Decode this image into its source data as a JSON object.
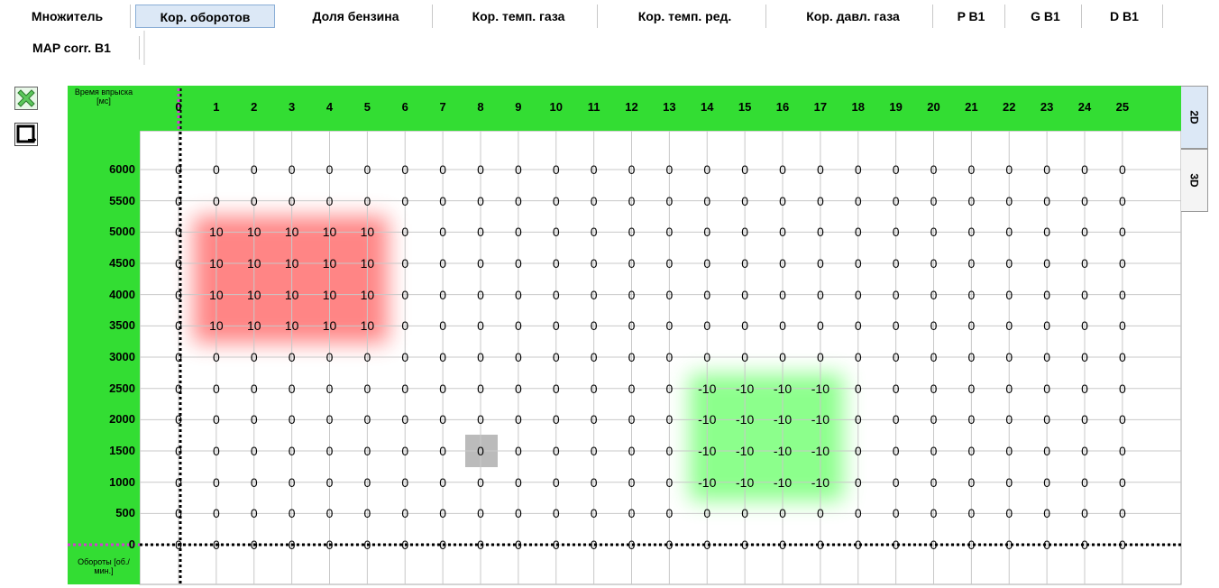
{
  "tabs": [
    "Множитель",
    "Кор. оборотов",
    "Доля бензина",
    "Кор. темп. газа",
    "Кор. темп. ред.",
    "Кор. давл. газа",
    "P B1",
    "G B1",
    "D B1",
    "MAP corr. B1"
  ],
  "active_tab": 1,
  "table": {
    "corner_label": "Время впрыска [мс]",
    "axis_label": "Обороты [об./мин.]",
    "columns": [
      0,
      1,
      2,
      3,
      4,
      5,
      6,
      7,
      8,
      9,
      10,
      11,
      12,
      13,
      14,
      15,
      16,
      17,
      18,
      19,
      20,
      21,
      22,
      23,
      24,
      25
    ],
    "rows": [
      {
        "label": 6000,
        "values": [
          0,
          0,
          0,
          0,
          0,
          0,
          0,
          0,
          0,
          0,
          0,
          0,
          0,
          0,
          0,
          0,
          0,
          0,
          0,
          0,
          0,
          0,
          0,
          0,
          0,
          0
        ]
      },
      {
        "label": 5500,
        "values": [
          0,
          0,
          0,
          0,
          0,
          0,
          0,
          0,
          0,
          0,
          0,
          0,
          0,
          0,
          0,
          0,
          0,
          0,
          0,
          0,
          0,
          0,
          0,
          0,
          0,
          0
        ]
      },
      {
        "label": 5000,
        "values": [
          0,
          10,
          10,
          10,
          10,
          10,
          0,
          0,
          0,
          0,
          0,
          0,
          0,
          0,
          0,
          0,
          0,
          0,
          0,
          0,
          0,
          0,
          0,
          0,
          0,
          0
        ]
      },
      {
        "label": 4500,
        "values": [
          0,
          10,
          10,
          10,
          10,
          10,
          0,
          0,
          0,
          0,
          0,
          0,
          0,
          0,
          0,
          0,
          0,
          0,
          0,
          0,
          0,
          0,
          0,
          0,
          0,
          0
        ]
      },
      {
        "label": 4000,
        "values": [
          0,
          10,
          10,
          10,
          10,
          10,
          0,
          0,
          0,
          0,
          0,
          0,
          0,
          0,
          0,
          0,
          0,
          0,
          0,
          0,
          0,
          0,
          0,
          0,
          0,
          0
        ]
      },
      {
        "label": 3500,
        "values": [
          0,
          10,
          10,
          10,
          10,
          10,
          0,
          0,
          0,
          0,
          0,
          0,
          0,
          0,
          0,
          0,
          0,
          0,
          0,
          0,
          0,
          0,
          0,
          0,
          0,
          0
        ]
      },
      {
        "label": 3000,
        "values": [
          0,
          0,
          0,
          0,
          0,
          0,
          0,
          0,
          0,
          0,
          0,
          0,
          0,
          0,
          0,
          0,
          0,
          0,
          0,
          0,
          0,
          0,
          0,
          0,
          0,
          0
        ]
      },
      {
        "label": 2500,
        "values": [
          0,
          0,
          0,
          0,
          0,
          0,
          0,
          0,
          0,
          0,
          0,
          0,
          0,
          0,
          -10,
          -10,
          -10,
          -10,
          0,
          0,
          0,
          0,
          0,
          0,
          0,
          0
        ]
      },
      {
        "label": 2000,
        "values": [
          0,
          0,
          0,
          0,
          0,
          0,
          0,
          0,
          0,
          0,
          0,
          0,
          0,
          0,
          -10,
          -10,
          -10,
          -10,
          0,
          0,
          0,
          0,
          0,
          0,
          0,
          0
        ]
      },
      {
        "label": 1500,
        "values": [
          0,
          0,
          0,
          0,
          0,
          0,
          0,
          0,
          0,
          0,
          0,
          0,
          0,
          0,
          -10,
          -10,
          -10,
          -10,
          0,
          0,
          0,
          0,
          0,
          0,
          0,
          0
        ]
      },
      {
        "label": 1000,
        "values": [
          0,
          0,
          0,
          0,
          0,
          0,
          0,
          0,
          0,
          0,
          0,
          0,
          0,
          0,
          -10,
          -10,
          -10,
          -10,
          0,
          0,
          0,
          0,
          0,
          0,
          0,
          0
        ]
      },
      {
        "label": 500,
        "values": [
          0,
          0,
          0,
          0,
          0,
          0,
          0,
          0,
          0,
          0,
          0,
          0,
          0,
          0,
          0,
          0,
          0,
          0,
          0,
          0,
          0,
          0,
          0,
          0,
          0,
          0
        ]
      },
      {
        "label": 0,
        "values": [
          0,
          0,
          0,
          0,
          0,
          0,
          0,
          0,
          0,
          0,
          0,
          0,
          0,
          0,
          0,
          0,
          0,
          0,
          0,
          0,
          0,
          0,
          0,
          0,
          0,
          0
        ]
      }
    ]
  },
  "side_tabs": [
    "2D",
    "3D"
  ]
}
